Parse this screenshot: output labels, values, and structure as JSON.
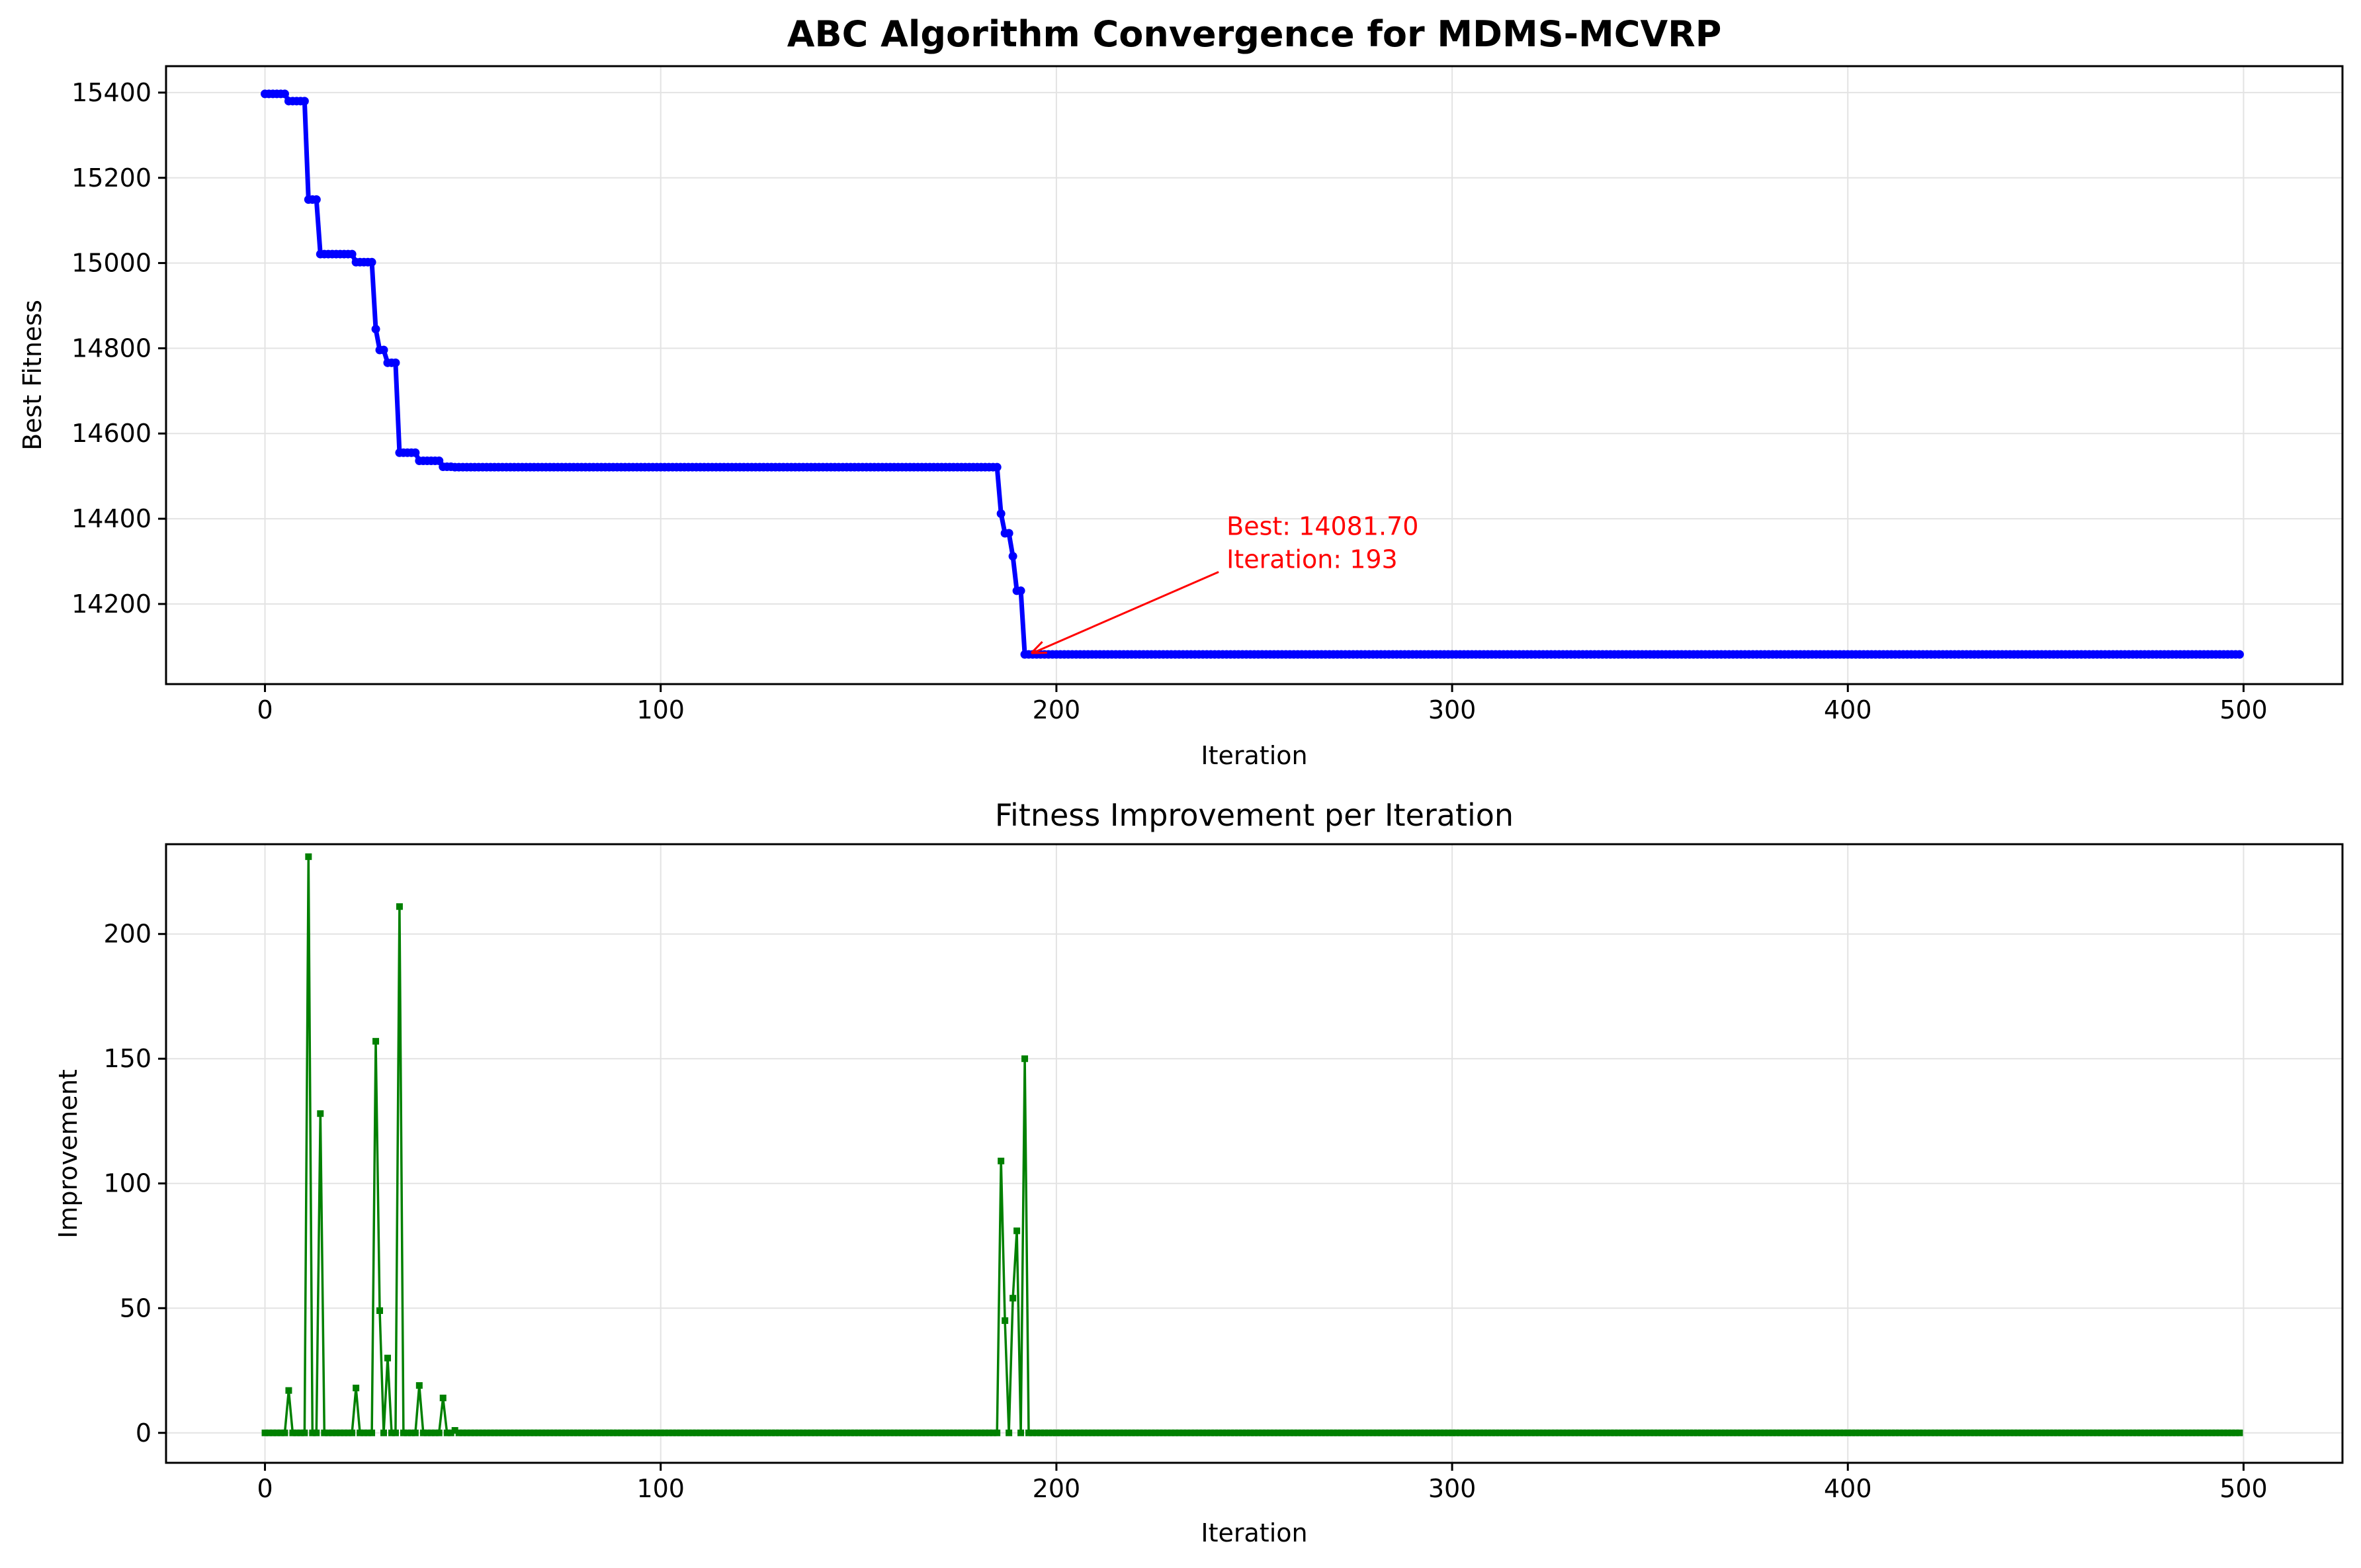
{
  "chart_data": [
    {
      "type": "line",
      "title": "ABC Algorithm Convergence for MDMS-MCVRP",
      "xlabel": "Iteration",
      "ylabel": "Best Fitness",
      "xlim": [
        -25,
        525
      ],
      "ylim": [
        14012,
        15462
      ],
      "xticks": [
        0,
        100,
        200,
        300,
        400,
        500
      ],
      "yticks": [
        14200,
        14400,
        14600,
        14800,
        15000,
        15200,
        15400
      ],
      "grid": true,
      "color": "#0000ff",
      "steps": [
        [
          0,
          15397
        ],
        [
          6,
          15380
        ],
        [
          11,
          15149
        ],
        [
          14,
          15021
        ],
        [
          23,
          15002
        ],
        [
          28,
          14845
        ],
        [
          29,
          14796
        ],
        [
          31,
          14766
        ],
        [
          34,
          14555
        ],
        [
          39,
          14536
        ],
        [
          45,
          14522
        ],
        [
          48,
          14521
        ],
        [
          186,
          14412
        ],
        [
          187,
          14366
        ],
        [
          189,
          14312
        ],
        [
          190,
          14231
        ],
        [
          192,
          14081.7
        ]
      ],
      "x_max": 499,
      "annotation": {
        "lines": [
          "Best: 14081.70",
          "Iteration: 193"
        ],
        "point": [
          193,
          14081.7
        ],
        "text_at": [
          243,
          14300
        ],
        "color": "#ff0000"
      }
    },
    {
      "type": "line",
      "title": "Fitness Improvement per Iteration",
      "xlabel": "Iteration",
      "ylabel": "Improvement",
      "xlim": [
        -25,
        525
      ],
      "ylim": [
        -12,
        236
      ],
      "xticks": [
        0,
        100,
        200,
        300,
        400,
        500
      ],
      "yticks": [
        0,
        50,
        100,
        150,
        200
      ],
      "grid": true,
      "color": "#008000",
      "x_max": 499,
      "spikes": [
        [
          6,
          17
        ],
        [
          11,
          231
        ],
        [
          14,
          128
        ],
        [
          23,
          18
        ],
        [
          28,
          157
        ],
        [
          29,
          49
        ],
        [
          31,
          30
        ],
        [
          34,
          211
        ],
        [
          39,
          19
        ],
        [
          45,
          14
        ],
        [
          48,
          1
        ],
        [
          186,
          109
        ],
        [
          187,
          45
        ],
        [
          189,
          54
        ],
        [
          190,
          81
        ],
        [
          192,
          150
        ]
      ]
    }
  ]
}
